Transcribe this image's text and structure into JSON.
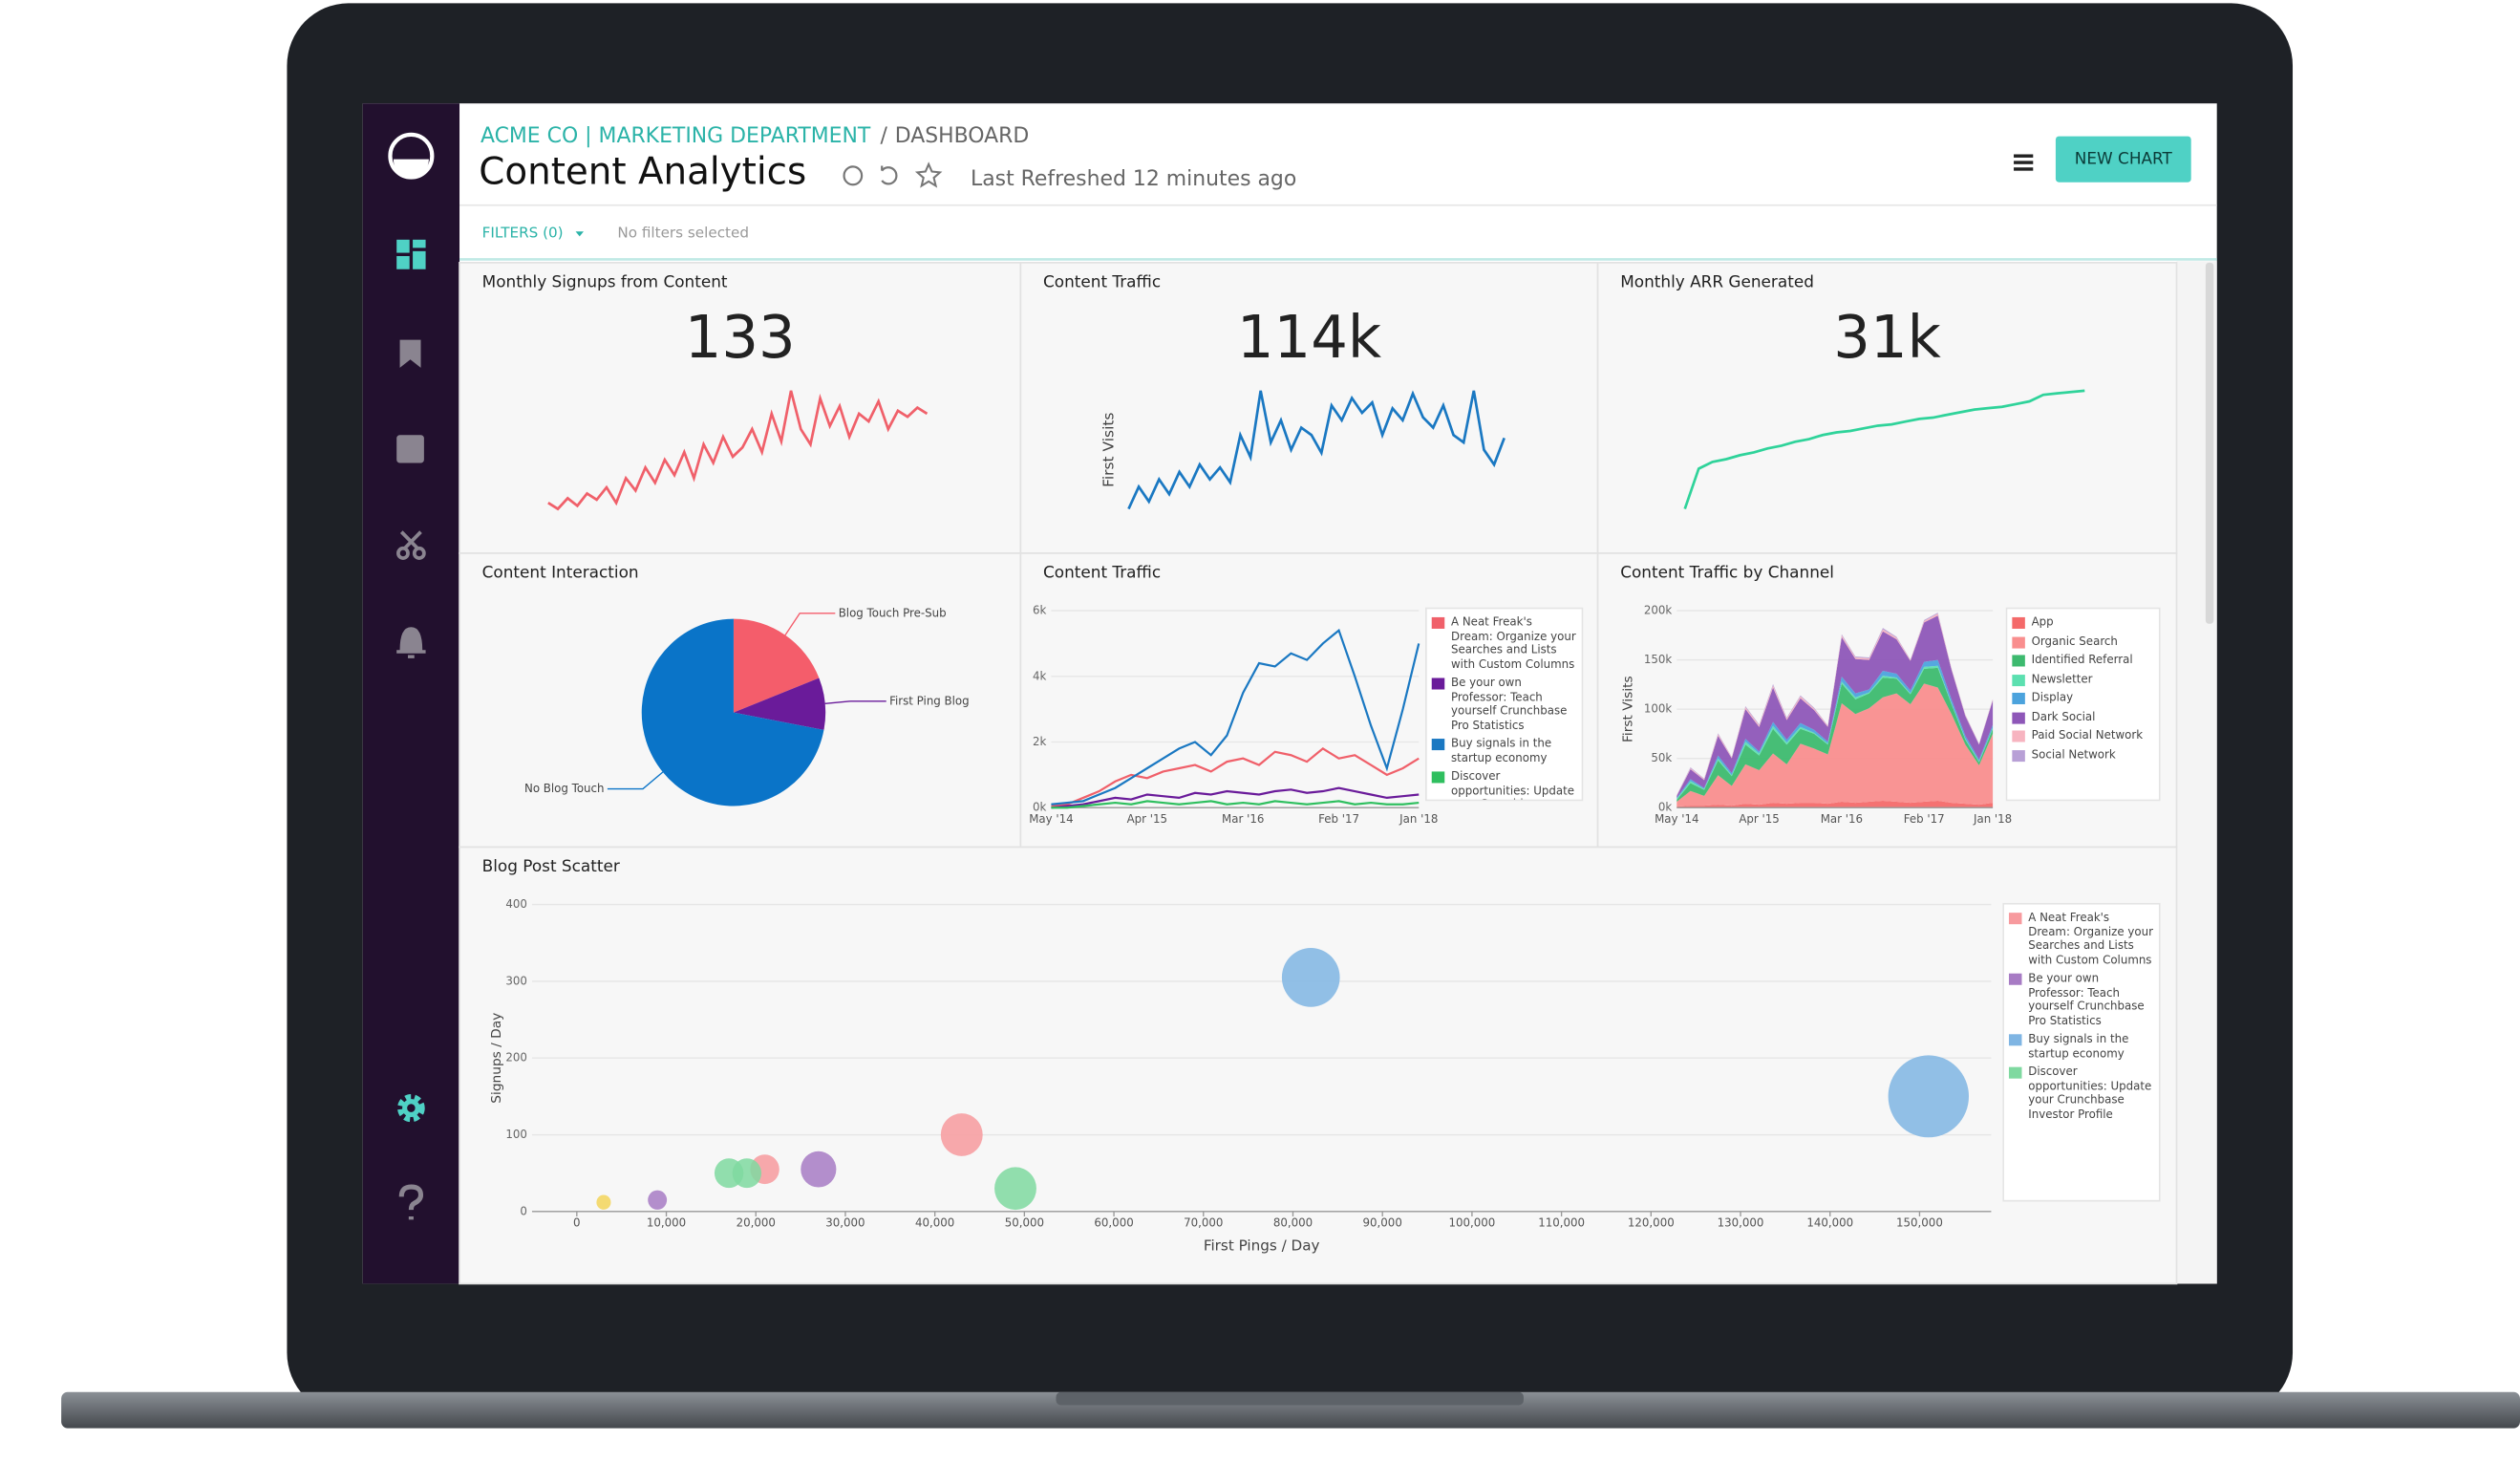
{
  "header": {
    "breadcrumb": "ACME CO | MARKETING DEPARTMENT",
    "separator": "/",
    "page": "DASHBOARD",
    "title": "Content Analytics",
    "refreshed": "Last Refreshed 12 minutes ago",
    "button": "NEW CHART"
  },
  "filters": {
    "label": "FILTERS (0)",
    "status": "No filters selected"
  },
  "chart_data": [
    {
      "type": "line",
      "title": "Monthly Signups from Content",
      "kpi": "133",
      "color": "#f0606a",
      "values": [
        12,
        8,
        15,
        10,
        18,
        14,
        22,
        12,
        28,
        20,
        35,
        25,
        40,
        30,
        45,
        28,
        50,
        38,
        55,
        42,
        48,
        60,
        45,
        70,
        52,
        85,
        60,
        50,
        80,
        62,
        75,
        55,
        70,
        65,
        78,
        60,
        72,
        68,
        74,
        70
      ]
    },
    {
      "type": "line",
      "title": "Content Traffic",
      "kpi": "114k",
      "y_label": "First Visits",
      "color": "#1a78c2",
      "values": [
        10,
        25,
        15,
        30,
        20,
        35,
        25,
        40,
        30,
        38,
        28,
        60,
        45,
        90,
        55,
        70,
        50,
        65,
        60,
        48,
        80,
        70,
        85,
        75,
        82,
        60,
        78,
        70,
        88,
        72,
        65,
        80,
        60,
        55,
        90,
        50,
        40,
        58
      ]
    },
    {
      "type": "line",
      "title": "Monthly ARR Generated",
      "kpi": "31k",
      "color": "#2fd39a",
      "values": [
        0,
        30,
        35,
        37,
        40,
        42,
        45,
        47,
        50,
        52,
        55,
        57,
        58,
        60,
        62,
        63,
        65,
        67,
        68,
        70,
        72,
        74,
        75,
        76,
        78,
        80,
        85,
        86,
        87,
        88
      ]
    },
    {
      "type": "pie",
      "title": "Content Interaction",
      "categories": [
        "Blog Touch Pre-Sub",
        "First Ping Blog",
        "No Blog Touch"
      ],
      "values": [
        19,
        9,
        72
      ],
      "colors": [
        "#f45d6b",
        "#6a1b9a",
        "#0a74c8"
      ]
    },
    {
      "type": "line",
      "title": "Content Traffic",
      "categories": [
        "May '14",
        null,
        null,
        null,
        null,
        null,
        "Apr '15",
        null,
        null,
        null,
        null,
        null,
        "Mar '16",
        null,
        null,
        null,
        null,
        null,
        "Feb '17",
        null,
        null,
        null,
        null,
        "Jan '18"
      ],
      "ylim": [
        0,
        6000
      ],
      "yticks": [
        {
          "value": 0,
          "label": "0k"
        },
        {
          "value": 2000,
          "label": "2k"
        },
        {
          "value": 4000,
          "label": "4k"
        },
        {
          "value": 6000,
          "label": "6k"
        }
      ],
      "grid": true,
      "series": [
        {
          "name": "A Neat Freak's Dream: Organize your Searches and Lists with Custom Columns",
          "color": "#f0606a",
          "values": [
            50,
            100,
            300,
            500,
            800,
            1000,
            900,
            1100,
            1200,
            1300,
            1100,
            1400,
            1500,
            1300,
            1700,
            1600,
            1400,
            1800,
            1500,
            1600,
            1300,
            1000,
            1200,
            1500
          ]
        },
        {
          "name": "Be your own Professor: Teach yourself Crunchbase Pro Statistics",
          "color": "#6a1b9a",
          "values": [
            0,
            50,
            100,
            200,
            300,
            250,
            400,
            350,
            300,
            450,
            400,
            500,
            450,
            400,
            500,
            550,
            450,
            500,
            600,
            500,
            400,
            300,
            350,
            400
          ]
        },
        {
          "name": "Buy signals in the startup economy",
          "color": "#1a78c2",
          "values": [
            100,
            150,
            200,
            400,
            600,
            900,
            1200,
            1500,
            1800,
            2000,
            1600,
            2200,
            3500,
            4400,
            4300,
            4700,
            4500,
            5000,
            5400,
            4000,
            2500,
            1200,
            3000,
            5000
          ]
        },
        {
          "name": "Discover opportunities: Update your Crunchbase Investor Profile",
          "color": "#2fbf5f",
          "values": [
            0,
            0,
            50,
            100,
            150,
            100,
            200,
            150,
            100,
            150,
            200,
            100,
            150,
            100,
            200,
            150,
            100,
            150,
            200,
            100,
            150,
            100,
            100,
            150
          ]
        }
      ]
    },
    {
      "type": "area",
      "title": "Content Traffic by Channel",
      "y_label": "First Visits",
      "categories": [
        "May '14",
        null,
        null,
        null,
        null,
        null,
        "Apr '15",
        null,
        null,
        null,
        null,
        null,
        "Mar '16",
        null,
        null,
        null,
        null,
        null,
        "Feb '17",
        null,
        null,
        null,
        null,
        "Jan '18"
      ],
      "ylim": [
        0,
        200000
      ],
      "yticks": [
        {
          "value": 0,
          "label": "0k"
        },
        {
          "value": 50000,
          "label": "50k"
        },
        {
          "value": 100000,
          "label": "100k"
        },
        {
          "value": 150000,
          "label": "150k"
        },
        {
          "value": 200000,
          "label": "200k"
        }
      ],
      "grid": true,
      "stacked": true,
      "series": [
        {
          "name": "App",
          "color": "#f46a6a",
          "values": [
            1000,
            2000,
            2000,
            3000,
            2000,
            4000,
            3000,
            5000,
            4000,
            5000,
            5000,
            4000,
            6000,
            5000,
            6000,
            7000,
            6000,
            5000,
            6000,
            7000,
            5000,
            4000,
            3000,
            5000
          ]
        },
        {
          "name": "Organic Search",
          "color": "#f98e8e",
          "values": [
            5000,
            15000,
            10000,
            30000,
            20000,
            40000,
            35000,
            50000,
            40000,
            60000,
            55000,
            50000,
            100000,
            90000,
            95000,
            105000,
            110000,
            100000,
            120000,
            115000,
            90000,
            60000,
            40000,
            70000
          ]
        },
        {
          "name": "Identified Referral",
          "color": "#3dba6f",
          "values": [
            2000,
            8000,
            6000,
            15000,
            10000,
            20000,
            15000,
            25000,
            20000,
            15000,
            15000,
            10000,
            20000,
            15000,
            15000,
            20000,
            15000,
            10000,
            15000,
            20000,
            10000,
            5000,
            3000,
            5000
          ]
        },
        {
          "name": "Newsletter",
          "color": "#5ce0b0",
          "values": [
            1000,
            2000,
            1000,
            2000,
            1000,
            3000,
            2000,
            3000,
            2000,
            2000,
            1000,
            1000,
            2000,
            2000,
            1000,
            2000,
            1000,
            1000,
            2000,
            2000,
            1000,
            1000,
            1000,
            1000
          ]
        },
        {
          "name": "Display",
          "color": "#4ca3dd",
          "values": [
            1000,
            2000,
            1000,
            3000,
            2000,
            3000,
            2000,
            4000,
            3000,
            4000,
            3000,
            2000,
            5000,
            4000,
            3000,
            5000,
            4000,
            3000,
            5000,
            6000,
            4000,
            3000,
            2000,
            3000
          ]
        },
        {
          "name": "Dark Social",
          "color": "#8e57b8",
          "values": [
            2000,
            10000,
            8000,
            20000,
            15000,
            30000,
            25000,
            35000,
            20000,
            25000,
            20000,
            15000,
            40000,
            35000,
            30000,
            40000,
            35000,
            30000,
            40000,
            45000,
            30000,
            20000,
            15000,
            25000
          ]
        },
        {
          "name": "Paid Social Network",
          "color": "#f7b4c0",
          "values": [
            500,
            1000,
            1000,
            1500,
            1000,
            2000,
            1500,
            2000,
            1500,
            2000,
            1500,
            1000,
            2000,
            1500,
            1500,
            2000,
            1500,
            1000,
            1500,
            2000,
            1000,
            1000,
            500,
            1000
          ]
        },
        {
          "name": "Social Network",
          "color": "#b8a0d6",
          "values": [
            500,
            1000,
            500,
            1000,
            500,
            1000,
            1000,
            1500,
            1000,
            1000,
            1000,
            500,
            1000,
            1000,
            1000,
            1500,
            1000,
            500,
            1000,
            1000,
            500,
            500,
            500,
            500
          ]
        }
      ]
    },
    {
      "type": "scatter",
      "title": "Blog Post Scatter",
      "x_label": "First Pings / Day",
      "y_label": "Signups / Day",
      "xlim": [
        -5000,
        158000
      ],
      "ylim": [
        0,
        400
      ],
      "grid": true,
      "xticks": [
        0,
        {
          "value": 10000,
          "label": "10,000"
        },
        {
          "value": 20000,
          "label": "20,000"
        },
        {
          "value": 30000,
          "label": "30,000"
        },
        {
          "value": 40000,
          "label": "40,000"
        },
        {
          "value": 50000,
          "label": "50,000"
        },
        {
          "value": 60000,
          "label": "60,000"
        },
        {
          "value": 70000,
          "label": "70,000"
        },
        {
          "value": 80000,
          "label": "80,000"
        },
        {
          "value": 90000,
          "label": "90,000"
        },
        {
          "value": 100000,
          "label": "100,000"
        },
        {
          "value": 110000,
          "label": "110,000"
        },
        {
          "value": 120000,
          "label": "120,000"
        },
        {
          "value": 130000,
          "label": "130,000"
        },
        {
          "value": 140000,
          "label": "140,000"
        },
        {
          "value": 150000,
          "label": "150,000"
        }
      ],
      "yticks": [
        0,
        100,
        200,
        300,
        400
      ],
      "series": [
        {
          "name": "A Neat Freak's Dream: Organize your Searches and Lists with Custom Columns",
          "color": "#f79a9e",
          "x": [
            21000,
            43000
          ],
          "values": [
            55,
            100
          ],
          "sizes": [
            16,
            36
          ]
        },
        {
          "name": "Be your own Professor: Teach yourself Crunchbase Pro Statistics",
          "color": "#a77bc4",
          "x": [
            9000,
            27000
          ],
          "values": [
            15,
            55
          ],
          "sizes": [
            6,
            25
          ]
        },
        {
          "name": "Buy signals in the startup economy",
          "color": "#7fb5e3",
          "x": [
            82000,
            151000
          ],
          "values": [
            305,
            150
          ],
          "sizes": [
            72,
            144
          ]
        },
        {
          "name": "Discover opportunities: Update your Crunchbase Investor Profile",
          "color": "#7fd9a0",
          "x": [
            17000,
            19000,
            49000
          ],
          "values": [
            50,
            50,
            30
          ],
          "sizes": [
            16,
            16,
            36
          ]
        },
        {
          "color": "#f3d55b",
          "x": [
            3000
          ],
          "values": [
            12
          ],
          "sizes": [
            3
          ]
        }
      ]
    }
  ]
}
